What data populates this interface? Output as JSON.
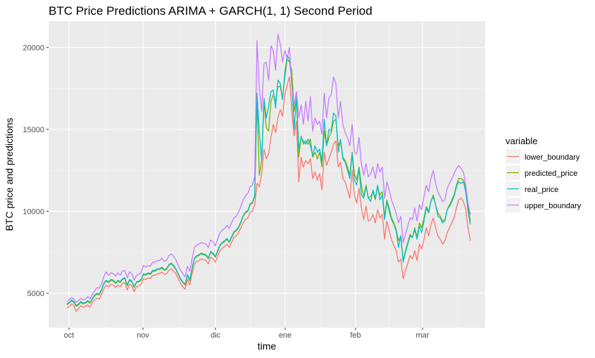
{
  "chart_data": {
    "type": "line",
    "title": "BTC Price Predictions ARIMA + GARCH(1, 1) Second Period",
    "xlabel": "time",
    "ylabel": "BTC price and predictions",
    "x_ticks": [
      "oct",
      "nov",
      "dic",
      "ene",
      "feb",
      "mar"
    ],
    "y_ticks": [
      5000,
      10000,
      15000,
      20000
    ],
    "ylim": [
      2900,
      21600
    ],
    "grid": true,
    "legend_title": "variable",
    "legend_position": "right",
    "x": [
      1,
      2,
      3,
      4,
      5,
      6,
      7,
      8,
      9,
      10,
      11,
      12,
      13,
      14,
      15,
      16,
      17,
      18,
      19,
      20,
      21,
      22,
      23,
      24,
      25,
      26,
      27,
      28,
      29,
      30,
      31,
      32,
      33,
      34,
      35,
      36,
      37,
      38,
      39,
      40,
      41,
      42,
      43,
      44,
      45,
      46,
      47,
      48,
      49,
      50,
      51,
      52,
      53,
      54,
      55,
      56,
      57,
      58,
      59,
      60,
      61,
      62,
      63,
      64,
      65,
      66,
      67,
      68,
      69,
      70,
      71,
      72,
      73,
      74,
      75,
      76,
      77,
      78,
      79,
      80,
      81,
      82,
      83,
      84,
      85,
      86,
      87,
      88,
      89,
      90,
      91,
      92,
      93,
      94,
      95,
      96,
      97,
      98,
      99,
      100,
      101,
      102,
      103,
      104,
      105,
      106,
      107,
      108,
      109,
      110,
      111,
      112,
      113,
      114,
      115,
      116,
      117,
      118,
      119,
      120,
      121,
      122,
      123,
      124,
      125,
      126,
      127,
      128,
      129,
      130,
      131,
      132,
      133,
      134,
      135,
      136,
      137,
      138,
      139,
      140,
      141,
      142,
      143,
      144,
      145,
      146,
      147,
      148,
      149,
      150,
      151,
      152,
      153,
      154,
      155,
      156,
      157,
      158,
      159,
      160,
      161,
      162,
      163,
      164,
      165,
      166,
      167,
      168,
      169,
      170,
      171,
      172,
      173,
      174,
      175
    ],
    "series": [
      {
        "name": "lower_boundary",
        "color": "#F8766D",
        "values": [
          4100,
          4200,
          4350,
          4250,
          3900,
          4050,
          4250,
          4150,
          4200,
          4300,
          4150,
          4450,
          4600,
          4700,
          4650,
          4950,
          5300,
          5500,
          5400,
          5550,
          5500,
          5350,
          5500,
          5400,
          5600,
          5650,
          5200,
          5550,
          5450,
          5100,
          5400,
          5450,
          5550,
          5900,
          5850,
          5950,
          5900,
          6100,
          6100,
          6200,
          6200,
          6300,
          6150,
          6200,
          6400,
          6500,
          6350,
          6200,
          5900,
          5600,
          5400,
          5250,
          5850,
          5500,
          6200,
          6800,
          6950,
          7000,
          7100,
          7050,
          7000,
          6800,
          7200,
          7100,
          6900,
          7250,
          7600,
          7750,
          7850,
          8000,
          7800,
          8100,
          8400,
          8500,
          8700,
          9000,
          9300,
          9500,
          9600,
          9950,
          10000,
          10400,
          11700,
          11500,
          12300,
          13800,
          13200,
          13500,
          14500,
          15300,
          14800,
          15700,
          16200,
          15800,
          17100,
          17700,
          18200,
          16100,
          14600,
          15500,
          11800,
          13300,
          12700,
          13100,
          12900,
          13200,
          12000,
          12400,
          11900,
          12300,
          11300,
          13600,
          12800,
          13200,
          13600,
          14100,
          14300,
          12700,
          13000,
          12000,
          11800,
          11300,
          10800,
          12500,
          11000,
          10500,
          11400,
          10200,
          9500,
          10300,
          9400,
          9500,
          9800,
          9300,
          10100,
          9600,
          9800,
          8300,
          9400,
          8800,
          8300,
          7900,
          7600,
          6900,
          7100,
          5900,
          6400,
          6800,
          7300,
          7100,
          7600,
          7000,
          8000,
          7700,
          8300,
          9000,
          8500,
          9200,
          9600,
          9000,
          8500,
          8300,
          8000,
          8200,
          8700,
          9000,
          9300,
          9600,
          10200,
          10700,
          10800,
          10600,
          10100,
          9000,
          8200
        ],
        "display_override": null
      },
      {
        "name": "predicted_price",
        "color": "#7CAE00",
        "values": [
          4300,
          4400,
          4550,
          4450,
          4200,
          4300,
          4450,
          4350,
          4400,
          4500,
          4400,
          4650,
          4850,
          4950,
          4900,
          5200,
          5600,
          5750,
          5650,
          5800,
          5750,
          5600,
          5750,
          5650,
          5850,
          5900,
          5450,
          5800,
          5700,
          5350,
          5650,
          5700,
          5800,
          6150,
          6100,
          6200,
          6150,
          6350,
          6350,
          6450,
          6450,
          6550,
          6400,
          6450,
          6700,
          6800,
          6650,
          6450,
          6150,
          5850,
          5650,
          5500,
          6100,
          5750,
          6500,
          7100,
          7250,
          7300,
          7400,
          7350,
          7300,
          7100,
          7500,
          7400,
          7200,
          7550,
          7900,
          8050,
          8150,
          8300,
          8100,
          8400,
          8700,
          8800,
          9000,
          9300,
          9700,
          9900,
          10000,
          10400,
          10500,
          10900,
          16800,
          12200,
          13100,
          16700,
          15100,
          14900,
          16700,
          17100,
          16700,
          17600,
          17600,
          16900,
          18200,
          19300,
          19100,
          18600,
          16100,
          16900,
          13300,
          14600,
          14100,
          14300,
          14100,
          14400,
          13300,
          13600,
          13200,
          13600,
          12700,
          14900,
          14000,
          14500,
          14800,
          15500,
          15600,
          14000,
          14300,
          13300,
          13100,
          12700,
          12200,
          13600,
          12300,
          11900,
          12700,
          11600,
          10900,
          11600,
          10800,
          10900,
          11200,
          10700,
          11500,
          11000,
          11200,
          9700,
          10700,
          10200,
          9600,
          9300,
          8900,
          8200,
          8500,
          7000,
          7600,
          8100,
          8600,
          8400,
          9000,
          8400,
          9300,
          9000,
          9600,
          10300,
          10000,
          10600,
          11000,
          10400,
          9900,
          9700,
          9400,
          9500,
          10100,
          10400,
          10700,
          11000,
          11600,
          12000,
          12000,
          11900,
          11400,
          10300,
          9400
        ]
      },
      {
        "name": "real_price",
        "color": "#00BFC4",
        "values": [
          4350,
          4450,
          4600,
          4500,
          4250,
          4350,
          4500,
          4400,
          4450,
          4550,
          4450,
          4700,
          4900,
          5000,
          4950,
          5250,
          5650,
          5800,
          5700,
          5850,
          5800,
          5650,
          5800,
          5700,
          5900,
          5950,
          5500,
          5850,
          5750,
          5400,
          5700,
          5750,
          5850,
          6200,
          6150,
          6250,
          6200,
          6400,
          6400,
          6500,
          6500,
          6600,
          6450,
          6500,
          6750,
          6850,
          6700,
          6500,
          6200,
          5900,
          5700,
          5550,
          6150,
          5800,
          6550,
          7150,
          7300,
          7350,
          7450,
          7400,
          7350,
          7150,
          7550,
          7450,
          7250,
          7600,
          7950,
          8100,
          8200,
          8350,
          8150,
          8450,
          8750,
          8850,
          9050,
          9350,
          9750,
          9950,
          10050,
          10450,
          10550,
          10950,
          17200,
          14800,
          13100,
          16900,
          15700,
          16400,
          17300,
          17400,
          16300,
          18000,
          17800,
          16800,
          18500,
          19500,
          19300,
          17800,
          15000,
          17000,
          13800,
          14500,
          14300,
          14100,
          14400,
          14000,
          13400,
          14000,
          13600,
          13800,
          13000,
          15600,
          14000,
          15000,
          14900,
          16000,
          15800,
          13600,
          14400,
          13200,
          13000,
          12500,
          12000,
          13500,
          11900,
          11600,
          12600,
          11000,
          10800,
          11500,
          10800,
          10600,
          11300,
          10800,
          11600,
          10700,
          11000,
          9500,
          10600,
          10000,
          9500,
          9200,
          8800,
          7800,
          8500,
          6900,
          7500,
          8000,
          8500,
          8400,
          8900,
          8300,
          9100,
          8700,
          9400,
          10200,
          9900,
          10600,
          10900,
          10400,
          9700,
          9600,
          9300,
          9400,
          10100,
          10300,
          10600,
          10900,
          11500,
          11800,
          11700,
          11800,
          11200,
          10000,
          9200
        ]
      },
      {
        "name": "upper_boundary",
        "color": "#C77CFF",
        "values": [
          4500,
          4600,
          4750,
          4650,
          4450,
          4550,
          4700,
          4600,
          4650,
          4800,
          4650,
          4950,
          5150,
          5350,
          5300,
          5600,
          6050,
          6300,
          6100,
          6250,
          6200,
          6050,
          6250,
          6100,
          6350,
          6400,
          5950,
          6300,
          6200,
          5800,
          6100,
          6150,
          6250,
          6700,
          6600,
          6700,
          6650,
          6900,
          6900,
          7000,
          7000,
          7150,
          6950,
          7000,
          7300,
          7400,
          7250,
          7050,
          6700,
          6400,
          6200,
          6000,
          6650,
          6350,
          7100,
          7800,
          7950,
          8000,
          8100,
          8050,
          8000,
          7800,
          8250,
          8150,
          7900,
          8300,
          8700,
          8850,
          8950,
          9150,
          8950,
          9300,
          9600,
          9700,
          9950,
          10300,
          10700,
          10950,
          11100,
          11500,
          11600,
          12100,
          20400,
          17500,
          16100,
          19000,
          19100,
          18000,
          20100,
          19800,
          18600,
          20800,
          20200,
          19100,
          19800,
          19300,
          20000,
          17500,
          16500,
          17300,
          15700,
          16500,
          15300,
          16700,
          15500,
          17000,
          14900,
          15700,
          15300,
          15500,
          14700,
          17200,
          15700,
          16900,
          17100,
          18200,
          17800,
          15700,
          16700,
          15300,
          14800,
          14500,
          14000,
          15300,
          13600,
          13500,
          14500,
          12900,
          12200,
          12900,
          12100,
          12300,
          12700,
          12000,
          12900,
          12400,
          12700,
          10800,
          11800,
          11300,
          10700,
          10300,
          9900,
          9300,
          9700,
          8100,
          8600,
          9100,
          9600,
          9500,
          10200,
          9400,
          10400,
          10100,
          10900,
          11600,
          11200,
          12000,
          12500,
          11700,
          11200,
          10900,
          10600,
          10700,
          11400,
          11700,
          12000,
          12300,
          12600,
          12800,
          12600,
          12400,
          11600,
          10500,
          9800
        ]
      }
    ]
  }
}
